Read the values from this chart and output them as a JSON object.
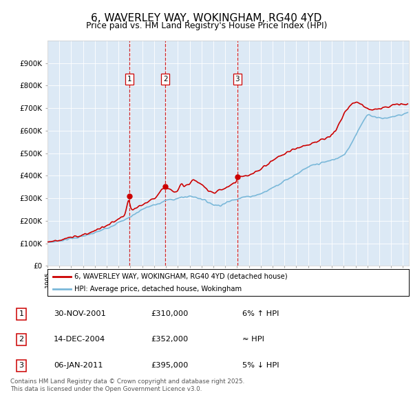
{
  "title": "6, WAVERLEY WAY, WOKINGHAM, RG40 4YD",
  "subtitle": "Price paid vs. HM Land Registry's House Price Index (HPI)",
  "background_color": "#dce9f5",
  "ylim": [
    0,
    1000000
  ],
  "yticks": [
    0,
    100000,
    200000,
    300000,
    400000,
    500000,
    600000,
    700000,
    800000,
    900000
  ],
  "ytick_labels": [
    "£0",
    "£100K",
    "£200K",
    "£300K",
    "£400K",
    "£500K",
    "£600K",
    "£700K",
    "£800K",
    "£900K"
  ],
  "sale_dates_float": [
    2001.91,
    2004.95,
    2011.02
  ],
  "sale_prices": [
    310000,
    352000,
    395000
  ],
  "sale_labels": [
    "1",
    "2",
    "3"
  ],
  "legend_house": "6, WAVERLEY WAY, WOKINGHAM, RG40 4YD (detached house)",
  "legend_hpi": "HPI: Average price, detached house, Wokingham",
  "table_data": [
    [
      "1",
      "30-NOV-2001",
      "£310,000",
      "6% ↑ HPI"
    ],
    [
      "2",
      "14-DEC-2004",
      "£352,000",
      "≈ HPI"
    ],
    [
      "3",
      "06-JAN-2011",
      "£395,000",
      "5% ↓ HPI"
    ]
  ],
  "footer": "Contains HM Land Registry data © Crown copyright and database right 2025.\nThis data is licensed under the Open Government Licence v3.0.",
  "house_color": "#cc0000",
  "hpi_color": "#7ab8d9",
  "vline_color": "#cc0000",
  "xlim_start": 1995.0,
  "xlim_end": 2025.5,
  "hpi_years": [
    1995.0,
    1995.5,
    1996.0,
    1996.5,
    1997.0,
    1997.5,
    1998.0,
    1998.5,
    1999.0,
    1999.5,
    2000.0,
    2000.5,
    2001.0,
    2001.5,
    2001.91,
    2002.0,
    2002.5,
    2003.0,
    2003.5,
    2004.0,
    2004.5,
    2004.95,
    2005.0,
    2005.5,
    2006.0,
    2006.5,
    2007.0,
    2007.5,
    2008.0,
    2008.5,
    2009.0,
    2009.5,
    2010.0,
    2010.5,
    2011.0,
    2011.02,
    2011.5,
    2012.0,
    2012.5,
    2013.0,
    2013.5,
    2014.0,
    2014.5,
    2015.0,
    2015.5,
    2016.0,
    2016.5,
    2017.0,
    2017.5,
    2018.0,
    2018.5,
    2019.0,
    2019.5,
    2020.0,
    2020.5,
    2021.0,
    2021.5,
    2022.0,
    2022.5,
    2023.0,
    2023.5,
    2024.0,
    2024.5,
    2025.0,
    2025.3
  ],
  "hpi_values": [
    105000,
    107000,
    112000,
    116000,
    122000,
    126000,
    132000,
    138000,
    147000,
    157000,
    168000,
    180000,
    192000,
    205000,
    215000,
    218000,
    235000,
    252000,
    262000,
    270000,
    278000,
    290000,
    292000,
    295000,
    300000,
    305000,
    310000,
    305000,
    298000,
    285000,
    272000,
    268000,
    278000,
    290000,
    298000,
    300000,
    305000,
    308000,
    313000,
    320000,
    332000,
    348000,
    362000,
    378000,
    392000,
    408000,
    422000,
    438000,
    448000,
    455000,
    462000,
    470000,
    478000,
    490000,
    530000,
    580000,
    630000,
    670000,
    665000,
    658000,
    655000,
    660000,
    668000,
    672000,
    680000
  ],
  "house_years": [
    1995.0,
    1995.5,
    1996.0,
    1996.5,
    1997.0,
    1997.5,
    1998.0,
    1998.5,
    1999.0,
    1999.5,
    2000.0,
    2000.5,
    2001.0,
    2001.5,
    2001.91,
    2002.0,
    2002.5,
    2003.0,
    2003.5,
    2004.0,
    2004.5,
    2004.95,
    2005.0,
    2005.5,
    2006.0,
    2006.3,
    2006.5,
    2007.0,
    2007.3,
    2007.5,
    2008.0,
    2008.5,
    2009.0,
    2009.5,
    2010.0,
    2010.5,
    2011.0,
    2011.02,
    2011.5,
    2012.0,
    2012.5,
    2013.0,
    2013.5,
    2014.0,
    2014.5,
    2015.0,
    2015.5,
    2016.0,
    2016.5,
    2017.0,
    2017.5,
    2018.0,
    2018.5,
    2019.0,
    2019.5,
    2020.0,
    2020.5,
    2021.0,
    2021.5,
    2022.0,
    2022.5,
    2023.0,
    2023.5,
    2024.0,
    2024.5,
    2025.0,
    2025.3
  ],
  "house_values": [
    108000,
    110000,
    115000,
    120000,
    126000,
    132000,
    138000,
    146000,
    156000,
    168000,
    178000,
    192000,
    206000,
    222000,
    310000,
    240000,
    258000,
    272000,
    285000,
    295000,
    335000,
    352000,
    345000,
    338000,
    330000,
    365000,
    355000,
    360000,
    390000,
    375000,
    360000,
    340000,
    325000,
    335000,
    345000,
    360000,
    375000,
    395000,
    395000,
    400000,
    415000,
    430000,
    450000,
    468000,
    485000,
    498000,
    510000,
    522000,
    532000,
    540000,
    548000,
    556000,
    565000,
    578000,
    620000,
    668000,
    710000,
    730000,
    715000,
    700000,
    695000,
    698000,
    705000,
    710000,
    718000,
    715000,
    720000
  ]
}
